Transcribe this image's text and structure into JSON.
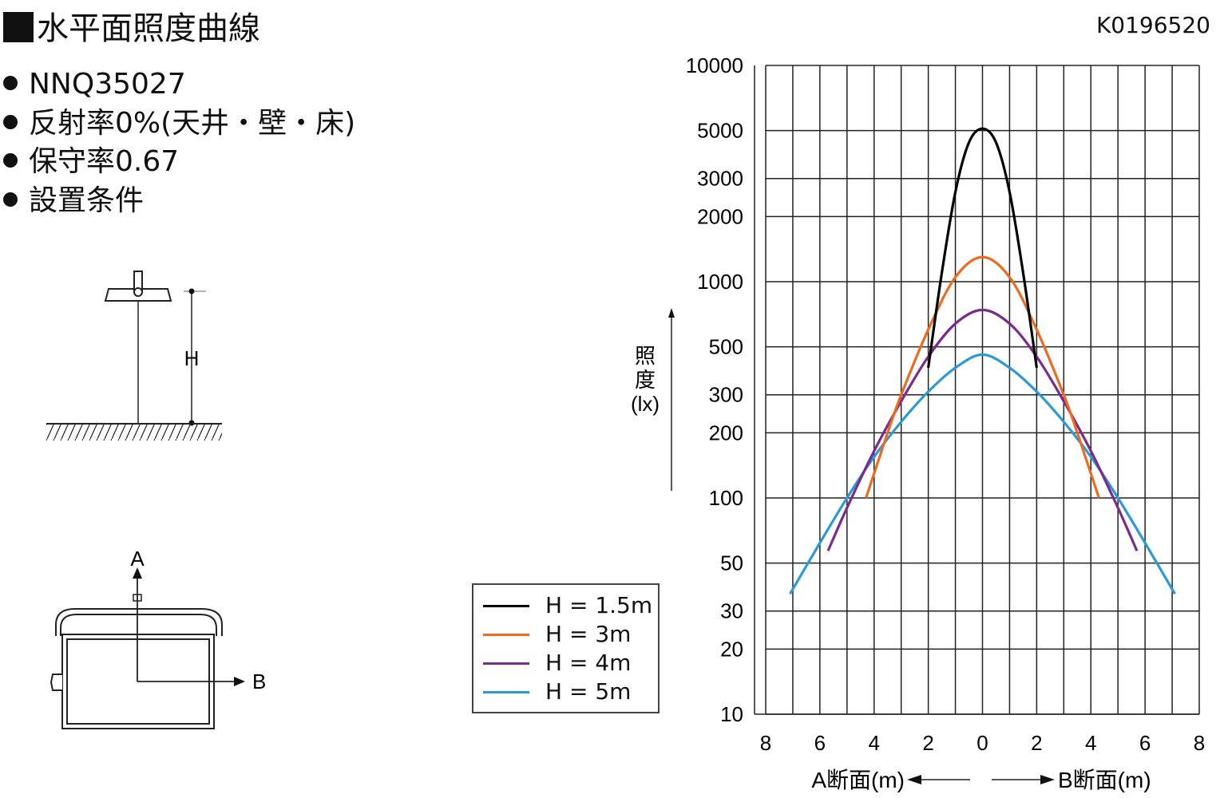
{
  "header": {
    "title": "水平面照度曲線",
    "code": "K0196520"
  },
  "bullets": [
    "NNQ35027",
    "反射率0%(天井・壁・床)",
    "保守率0.67",
    "設置条件"
  ],
  "installation_diagram": {
    "height_label": "H"
  },
  "orientation_diagram": {
    "label_a": "A",
    "label_b": "B"
  },
  "colors": {
    "h15": "#000000",
    "h3": "#ee6a1c",
    "h4": "#7b2a8e",
    "h5": "#2a9ad8",
    "grid": "#222222"
  },
  "chart_data": {
    "type": "line",
    "y_scale": "log",
    "ylim": [
      10,
      10000
    ],
    "xlim": [
      -8,
      8
    ],
    "y_ticks": [
      10,
      20,
      30,
      50,
      100,
      200,
      300,
      500,
      1000,
      2000,
      3000,
      5000,
      10000
    ],
    "y_tick_labels": [
      "10",
      "20",
      "30",
      "50",
      "100",
      "200",
      "300",
      "500",
      "1000",
      "2000",
      "3000",
      "5000",
      "10000"
    ],
    "x_ticks": [
      -8,
      -6,
      -4,
      -2,
      0,
      2,
      4,
      6,
      8
    ],
    "x_tick_labels": [
      "8",
      "6",
      "4",
      "2",
      "0",
      "2",
      "4",
      "6",
      "8"
    ],
    "ylabel": "照度(lx)",
    "xlabel_left": "A断面(m)",
    "xlabel_right": "B断面(m)",
    "grid": true,
    "legend_placement": "left of plot, lower",
    "series": [
      {
        "name": "H = 1.5m",
        "color": "#000000",
        "x": [
          -2.0,
          -1.5,
          -1.0,
          -0.5,
          0,
          0.5,
          1.0,
          1.5,
          2.0
        ],
        "y": [
          400,
          1100,
          2600,
          4400,
          5100,
          4400,
          2600,
          1100,
          400
        ]
      },
      {
        "name": "H = 3m",
        "color": "#ee6a1c",
        "x": [
          -4.3,
          -3.5,
          -3.0,
          -2.0,
          -1.0,
          0,
          1.0,
          2.0,
          3.0,
          3.5,
          4.3
        ],
        "y": [
          100,
          200,
          300,
          600,
          1050,
          1300,
          1050,
          600,
          300,
          200,
          100
        ]
      },
      {
        "name": "H = 4m",
        "color": "#7b2a8e",
        "x": [
          -5.7,
          -5.0,
          -4.0,
          -3.0,
          -2.0,
          -1.0,
          0,
          1.0,
          2.0,
          3.0,
          4.0,
          5.0,
          5.7
        ],
        "y": [
          57,
          90,
          165,
          280,
          450,
          640,
          740,
          640,
          450,
          280,
          165,
          90,
          57
        ]
      },
      {
        "name": "H = 5m",
        "color": "#2a9ad8",
        "x": [
          -7.1,
          -6.0,
          -5.0,
          -4.0,
          -3.0,
          -2.0,
          -1.0,
          0,
          1.0,
          2.0,
          3.0,
          4.0,
          5.0,
          6.0,
          7.1
        ],
        "y": [
          36,
          62,
          100,
          155,
          225,
          310,
          400,
          460,
          400,
          310,
          225,
          155,
          100,
          62,
          36
        ]
      }
    ]
  }
}
